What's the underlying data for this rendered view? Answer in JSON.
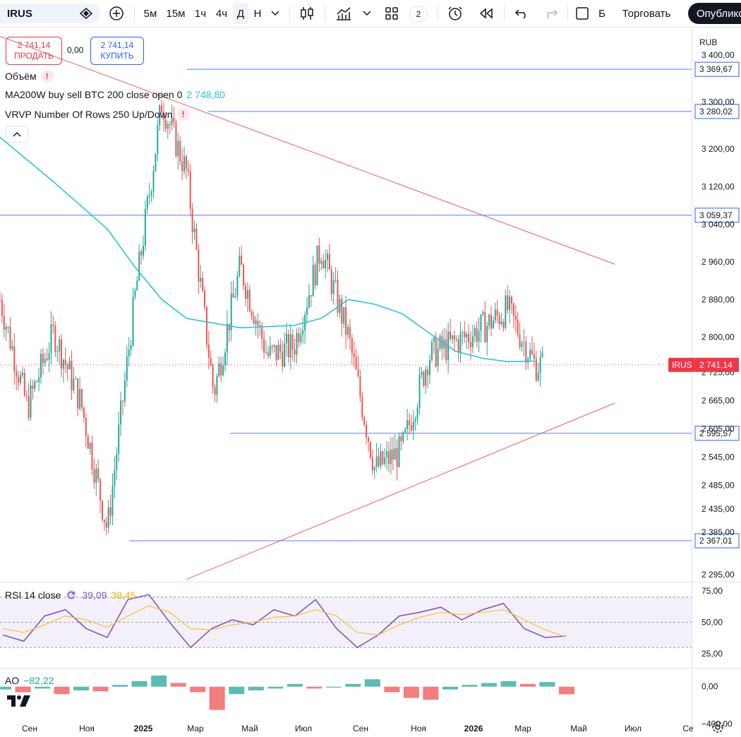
{
  "toolbar": {
    "symbol": "IRUS",
    "intervals": [
      "5м",
      "15м",
      "1ч",
      "4ч",
      "Д",
      "Н"
    ],
    "layout_count": "2",
    "partial_label": "Б",
    "trade_button": "Торговать",
    "publish_button": "Опублико"
  },
  "trade_panel": {
    "sell_price": "2 741,14",
    "sell_label": "ПРОДАТЬ",
    "spread": "0,00",
    "buy_price": "2 741,14",
    "buy_label": "КУПИТЬ"
  },
  "legends": {
    "volume": "Объём",
    "ma": "MA200W buy sell BTC 200 close open 0",
    "ma_value": "2 748,80",
    "vrvp": "VRVP Number Of Rows 250 Up/Down",
    "rsi": "RSI 14 close",
    "rsi_value1": "39,09",
    "rsi_value2": "38,45",
    "ao": "AO",
    "ao_value": "−82,22"
  },
  "currency": "RUB",
  "colors": {
    "up": "#26a69a",
    "down": "#ef5350",
    "ma": "#26c6da",
    "trend": "#f05a65",
    "hline": "#2962ff",
    "rsi": "#7e57c2",
    "rsi_ma": "#fbc02d",
    "price_tag": "#f23645"
  },
  "chart_data": [
    {
      "type": "candlestick",
      "symbol": "IRUS",
      "current_price": 2741.14,
      "price_tag_label": "IRUS",
      "price_tag_value": "2 741,14",
      "y_range": [
        2280,
        3460
      ],
      "y_ticks": [
        3400,
        3300,
        3200,
        3120,
        3040,
        2960,
        2880,
        2800,
        2725,
        2665,
        2605,
        2545,
        2485,
        2435,
        2385,
        2295
      ],
      "y_tick_labels": [
        "3 400,00",
        "3 300,00",
        "3 200,00",
        "3 120,00",
        "3 040,00",
        "2 960,00",
        "2 880,00",
        "2 800,00",
        "2 725,00",
        "2 665,00",
        "2 605,00",
        "2 545,00",
        "2 485,00",
        "2 435,00",
        "2 385,00",
        "2 295,00"
      ],
      "x_tick_labels": [
        "Сен",
        "Ноя",
        "2025",
        "Мар",
        "Май",
        "Июл",
        "Сен",
        "Ноя",
        "2026",
        "Мар",
        "Май",
        "Июл",
        "Се"
      ],
      "horizontal_levels": [
        {
          "value": 3369.67,
          "label": "3 369,67"
        },
        {
          "value": 3280.02,
          "label": "3 280,02"
        },
        {
          "value": 3059.37,
          "label": "3 059,37"
        },
        {
          "value": 2595.57,
          "label": "2 595,57"
        },
        {
          "value": 2367.01,
          "label": "2 367,01"
        }
      ],
      "trend_lines": [
        {
          "from": {
            "date": "2024-08",
            "value": 3440
          },
          "to": {
            "date": "2026-07",
            "value": 2955
          }
        },
        {
          "from": {
            "date": "2025-03",
            "value": 2285
          },
          "to": {
            "date": "2026-07",
            "value": 2660
          }
        }
      ],
      "price_path": [
        {
          "date": "2024-08",
          "close": 2880
        },
        {
          "date": "2024-09",
          "close": 2650
        },
        {
          "date": "2024-10",
          "close": 2810
        },
        {
          "date": "2024-11",
          "close": 2660
        },
        {
          "date": "2024-12",
          "close": 2390
        },
        {
          "date": "2025-01",
          "close": 2880
        },
        {
          "date": "2025-02",
          "close": 3300
        },
        {
          "date": "2025-03",
          "close": 3150
        },
        {
          "date": "2025-04",
          "close": 2680
        },
        {
          "date": "2025-05",
          "close": 2950
        },
        {
          "date": "2025-06",
          "close": 2760
        },
        {
          "date": "2025-07",
          "close": 2780
        },
        {
          "date": "2025-08",
          "close": 2990
        },
        {
          "date": "2025-09",
          "close": 2800
        },
        {
          "date": "2025-10",
          "close": 2520
        },
        {
          "date": "2025-11",
          "close": 2560
        },
        {
          "date": "2025-12",
          "close": 2760
        },
        {
          "date": "2026-01",
          "close": 2790
        },
        {
          "date": "2026-02",
          "close": 2820
        },
        {
          "date": "2026-03",
          "close": 2860
        },
        {
          "date": "2026-04",
          "close": 2741.14
        }
      ],
      "ma200w": [
        {
          "date": "2024-08",
          "value": 3225
        },
        {
          "date": "2024-10",
          "value": 3130
        },
        {
          "date": "2024-12",
          "value": 3030
        },
        {
          "date": "2025-01",
          "value": 2950
        },
        {
          "date": "2025-02",
          "value": 2880
        },
        {
          "date": "2025-03",
          "value": 2840
        },
        {
          "date": "2025-05",
          "value": 2820
        },
        {
          "date": "2025-07",
          "value": 2825
        },
        {
          "date": "2025-08",
          "value": 2840
        },
        {
          "date": "2025-09",
          "value": 2880
        },
        {
          "date": "2025-10",
          "value": 2870
        },
        {
          "date": "2025-11",
          "value": 2850
        },
        {
          "date": "2025-12",
          "value": 2810
        },
        {
          "date": "2026-01",
          "value": 2770
        },
        {
          "date": "2026-02",
          "value": 2755
        },
        {
          "date": "2026-03",
          "value": 2748
        },
        {
          "date": "2026-04",
          "value": 2748.8
        }
      ]
    },
    {
      "type": "line",
      "title": "RSI 14 close",
      "y_range": [
        15,
        80
      ],
      "y_tick_labels": [
        "75,00",
        "50,00",
        "25,00"
      ],
      "y_ticks": [
        75,
        50,
        25
      ],
      "band": [
        30,
        70
      ],
      "series": [
        {
          "name": "RSI",
          "values": [
            40,
            35,
            55,
            60,
            45,
            38,
            68,
            72,
            50,
            30,
            45,
            52,
            48,
            60,
            55,
            68,
            45,
            30,
            40,
            55,
            58,
            62,
            52,
            60,
            65,
            45,
            38,
            39.09
          ]
        },
        {
          "name": "RSI MA",
          "values": [
            45,
            42,
            48,
            55,
            52,
            46,
            55,
            63,
            58,
            45,
            44,
            48,
            50,
            54,
            55,
            60,
            55,
            42,
            40,
            48,
            54,
            58,
            56,
            58,
            60,
            52,
            44,
            38.45
          ]
        }
      ]
    },
    {
      "type": "bar",
      "title": "AO",
      "y_range": [
        -420,
        150
      ],
      "y_tick_labels": [
        "0,00",
        "−400,00"
      ],
      "y_ticks": [
        0,
        -400
      ],
      "values": [
        -30,
        -60,
        -20,
        -80,
        -40,
        -50,
        20,
        60,
        120,
        40,
        -60,
        -250,
        -80,
        -40,
        -20,
        30,
        -20,
        -10,
        30,
        80,
        -60,
        -120,
        -140,
        -30,
        20,
        40,
        60,
        30,
        50,
        -82.22
      ]
    }
  ]
}
